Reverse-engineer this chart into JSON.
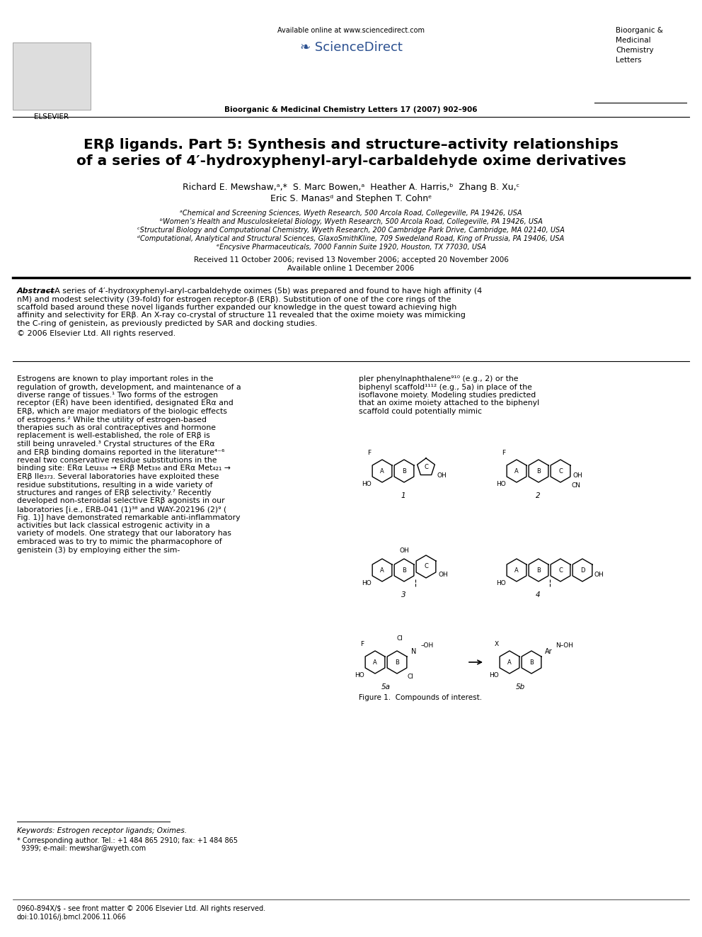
{
  "bg_color": "#ffffff",
  "title_line1": "ERβ ligands. Part 5: Synthesis and structure–activity relationships",
  "title_line2": "of a series of 4′-hydroxyphenyl-aryl-carbaldehyde oxime derivatives",
  "authors": "Richard E. Mewshaw,   S. Marc Bowen,  Heather A. Harris,  Zhang B. Xu,",
  "authors2": "Eric S. Manas  and Stephen T. Cohn",
  "affil1": "ᵃChemical and Screening Sciences, Wyeth Research, 500 Arcola Road, Collegeville, PA 19426, USA",
  "affil2": "ᵇWomen’s Health and Musculoskeletal Biology, Wyeth Research, 500 Arcola Road, Collegeville, PA 19426, USA",
  "affil3": "ᶜStructural Biology and Computational Chemistry, Wyeth Research, 200 Cambridge Park Drive, Cambridge, MA 02140, USA",
  "affil4": "ᵈComputational, Analytical and Structural Sciences, GlaxoSmithKline, 709 Swedeland Road, King of Prussia, PA 19406, USA",
  "affil5": "ᵉEncysive Pharmaceuticals, 7000 Fannin Suite 1920, Houston, TX 77030, USA",
  "dates": "Received 11 October 2006; revised 13 November 2006; accepted 20 November 2006",
  "online": "Available online 1 December 2006",
  "journal_header": "Bioorganic & Medicinal Chemistry Letters 17 (2007) 902–906",
  "available_online": "Available online at www.sciencedirect.com",
  "journal_name_right": "Bioorganic &\nMedicinal\nChemistry\nLetters",
  "abstract_title": "Abstract",
  "abstract_text": "—A series of 4′-hydroxyphenyl-aryl-carbaldehyde oximes (5b) was prepared and found to have high affinity (4 nM) and modest selectivity (39-fold) for estrogen receptor-β (ERβ). Substitution of one of the core rings of the scaffold based around these novel ligands further expanded our knowledge in the quest toward achieving high affinity and selectivity for ERβ. An X-ray co-crystal of structure 11 revealed that the oxime moiety was mimicking the C-ring of genistein, as previously predicted by SAR and docking studies.",
  "copyright": "© 2006 Elsevier Ltd. All rights reserved.",
  "body_left": "Estrogens are known to play important roles in the regulation of growth, development, and maintenance of a diverse range of tissues.¹ Two forms of the estrogen receptor (ER) have been identified, designated ERα and ERβ, which are major mediators of the biologic effects of estrogens.² While the utility of estrogen-based therapies such as oral contraceptives and hormone replacement is well-established, the role of ERβ is still being unraveled.³ Crystal structures of the ERα and ERβ binding domains reported in the literature⁴⁻⁶ reveal two conservative residue substitutions in the binding site: ERα Leu₃₃₄ → ERβ Met₃₃₆ and ERα Met₄₂₁ → ERβ Ile₃₇₃. Several laboratories have exploited these residue substitutions, resulting in a wide variety of structures and ranges of ERβ selectivity.⁷ Recently developed non-steroidal selective ERβ agonists in our laboratories [i.e., ERB-041 (1)³⁸ and WAY-202196 (2)⁹ ( Fig. 1)] have demonstrated remarkable anti-inflammatory activities but lack classical estrogenic activity in a variety of models. One strategy that our laboratory has embraced was to try to mimic the pharmacophore of genistein (3) by employing either the sim-",
  "body_right": "pler phenylnaphthalene⁹¹⁰ (e.g., 2) or the biphenyl scaffold¹¹¹² (e.g., 5a) in place of the isoflavone moiety. Modeling studies predicted that an oxime moiety attached to the biphenyl scaffold could potentially mimic",
  "fig_caption": "Figure 1.  Compounds of interest.",
  "keywords": "Keywords: Estrogen receptor ligands; Oximes.",
  "footnote1": "—————————————",
  "footnote2": "* Corresponding author. Tel.: +1 484 865 2910; fax: +1 484 865",
  "footnote3": "  9399; e-mail: mewshar@wyeth.com",
  "bottom1": "0960-894X/$ - see front matter © 2006 Elsevier Ltd. All rights reserved.",
  "bottom2": "doi:10.1016/j.bmcl.2006.11.066"
}
